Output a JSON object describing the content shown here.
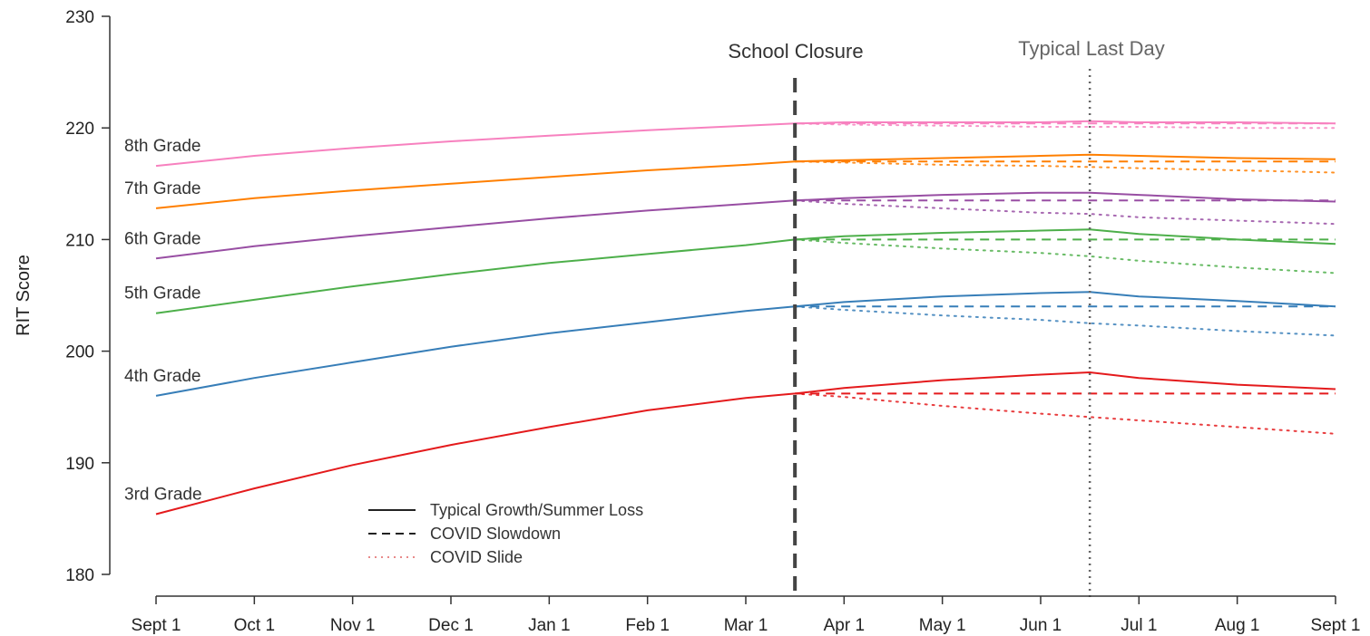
{
  "chart_data": {
    "type": "line",
    "ylabel": "RIT Score",
    "xlabel": "",
    "ylim": [
      180,
      230
    ],
    "yticks": [
      180,
      190,
      200,
      210,
      220,
      230
    ],
    "x_ticks": [
      "Sept 1",
      "Oct 1",
      "Nov 1",
      "Dec 1",
      "Jan 1",
      "Feb 1",
      "Mar 1",
      "Apr 1",
      "May 1",
      "Jun 1",
      "Jul 1",
      "Aug 1",
      "Sept 1"
    ],
    "grid": false,
    "annotations": {
      "closure": {
        "label": "School Closure",
        "x": 6.5,
        "color": "#444444"
      },
      "last_day": {
        "label": "Typical Last Day",
        "x": 9.5,
        "color": "#666666"
      }
    },
    "legend": {
      "position": "bottom-left",
      "items": [
        {
          "label": "Typical Growth/Summer Loss",
          "style": "solid"
        },
        {
          "label": "COVID Slowdown",
          "style": "dashed"
        },
        {
          "label": "COVID Slide",
          "style": "dotted"
        }
      ]
    },
    "series": [
      {
        "label": "3rd Grade",
        "color": "#e41a1c",
        "typical": [
          [
            0,
            185.4
          ],
          [
            1,
            187.7
          ],
          [
            2,
            189.8
          ],
          [
            3,
            191.6
          ],
          [
            4,
            193.2
          ],
          [
            5,
            194.7
          ],
          [
            6,
            195.8
          ],
          [
            6.5,
            196.2
          ],
          [
            7,
            196.7
          ],
          [
            8,
            197.4
          ],
          [
            9,
            197.9
          ],
          [
            9.5,
            198.1
          ],
          [
            10,
            197.6
          ],
          [
            11,
            197.0
          ],
          [
            12,
            196.6
          ]
        ],
        "slowdown": [
          [
            6.5,
            196.2
          ],
          [
            12,
            196.2
          ]
        ],
        "slide": [
          [
            6.5,
            196.2
          ],
          [
            7,
            195.9
          ],
          [
            8,
            195.1
          ],
          [
            9,
            194.4
          ],
          [
            9.5,
            194.1
          ],
          [
            10,
            193.8
          ],
          [
            11,
            193.2
          ],
          [
            12,
            192.6
          ]
        ]
      },
      {
        "label": "4th Grade",
        "color": "#377eb8",
        "typical": [
          [
            0,
            196.0
          ],
          [
            1,
            197.6
          ],
          [
            2,
            199.0
          ],
          [
            3,
            200.4
          ],
          [
            4,
            201.6
          ],
          [
            5,
            202.6
          ],
          [
            6,
            203.6
          ],
          [
            6.5,
            204.0
          ],
          [
            7,
            204.4
          ],
          [
            8,
            204.9
          ],
          [
            9,
            205.2
          ],
          [
            9.5,
            205.3
          ],
          [
            10,
            204.9
          ],
          [
            11,
            204.5
          ],
          [
            12,
            204.0
          ]
        ],
        "slowdown": [
          [
            6.5,
            204.0
          ],
          [
            12,
            204.0
          ]
        ],
        "slide": [
          [
            6.5,
            204.0
          ],
          [
            7,
            203.7
          ],
          [
            8,
            203.2
          ],
          [
            9,
            202.8
          ],
          [
            9.5,
            202.5
          ],
          [
            10,
            202.3
          ],
          [
            11,
            201.8
          ],
          [
            12,
            201.4
          ]
        ]
      },
      {
        "label": "5th Grade",
        "color": "#4daf4a",
        "typical": [
          [
            0,
            203.4
          ],
          [
            1,
            204.6
          ],
          [
            2,
            205.8
          ],
          [
            3,
            206.9
          ],
          [
            4,
            207.9
          ],
          [
            5,
            208.7
          ],
          [
            6,
            209.5
          ],
          [
            6.5,
            210.0
          ],
          [
            7,
            210.3
          ],
          [
            8,
            210.6
          ],
          [
            9,
            210.8
          ],
          [
            9.5,
            210.9
          ],
          [
            10,
            210.5
          ],
          [
            11,
            210.0
          ],
          [
            12,
            209.6
          ]
        ],
        "slowdown": [
          [
            6.5,
            210.0
          ],
          [
            12,
            210.0
          ]
        ],
        "slide": [
          [
            6.5,
            210.0
          ],
          [
            7,
            209.7
          ],
          [
            8,
            209.2
          ],
          [
            9,
            208.8
          ],
          [
            9.5,
            208.5
          ],
          [
            10,
            208.1
          ],
          [
            11,
            207.5
          ],
          [
            12,
            207.0
          ]
        ]
      },
      {
        "label": "6th Grade",
        "color": "#984ea3",
        "typical": [
          [
            0,
            208.3
          ],
          [
            1,
            209.4
          ],
          [
            2,
            210.3
          ],
          [
            3,
            211.1
          ],
          [
            4,
            211.9
          ],
          [
            5,
            212.6
          ],
          [
            6,
            213.2
          ],
          [
            6.5,
            213.5
          ],
          [
            7,
            213.7
          ],
          [
            8,
            214.0
          ],
          [
            9,
            214.2
          ],
          [
            9.5,
            214.2
          ],
          [
            10,
            214.0
          ],
          [
            11,
            213.6
          ],
          [
            12,
            213.4
          ]
        ],
        "slowdown": [
          [
            6.5,
            213.5
          ],
          [
            12,
            213.5
          ]
        ],
        "slide": [
          [
            6.5,
            213.5
          ],
          [
            7,
            213.2
          ],
          [
            8,
            212.8
          ],
          [
            9,
            212.4
          ],
          [
            9.5,
            212.3
          ],
          [
            10,
            212.0
          ],
          [
            11,
            211.7
          ],
          [
            12,
            211.4
          ]
        ]
      },
      {
        "label": "7th Grade",
        "color": "#ff7f00",
        "typical": [
          [
            0,
            212.8
          ],
          [
            1,
            213.7
          ],
          [
            2,
            214.4
          ],
          [
            3,
            215.0
          ],
          [
            4,
            215.6
          ],
          [
            5,
            216.2
          ],
          [
            6,
            216.7
          ],
          [
            6.5,
            217.0
          ],
          [
            7,
            217.1
          ],
          [
            8,
            217.3
          ],
          [
            9,
            217.5
          ],
          [
            9.5,
            217.6
          ],
          [
            10,
            217.5
          ],
          [
            11,
            217.3
          ],
          [
            12,
            217.2
          ]
        ],
        "slowdown": [
          [
            6.5,
            217.0
          ],
          [
            12,
            217.0
          ]
        ],
        "slide": [
          [
            6.5,
            217.0
          ],
          [
            7,
            216.9
          ],
          [
            8,
            216.7
          ],
          [
            9,
            216.6
          ],
          [
            9.5,
            216.5
          ],
          [
            10,
            216.4
          ],
          [
            11,
            216.2
          ],
          [
            12,
            216.0
          ]
        ]
      },
      {
        "label": "8th Grade",
        "color": "#f781bf",
        "typical": [
          [
            0,
            216.6
          ],
          [
            1,
            217.5
          ],
          [
            2,
            218.2
          ],
          [
            3,
            218.8
          ],
          [
            4,
            219.3
          ],
          [
            5,
            219.8
          ],
          [
            6,
            220.2
          ],
          [
            6.5,
            220.4
          ],
          [
            7,
            220.5
          ],
          [
            8,
            220.5
          ],
          [
            9,
            220.5
          ],
          [
            9.5,
            220.6
          ],
          [
            10,
            220.5
          ],
          [
            11,
            220.5
          ],
          [
            12,
            220.4
          ]
        ],
        "slowdown": [
          [
            6.5,
            220.4
          ],
          [
            12,
            220.4
          ]
        ],
        "slide": [
          [
            6.5,
            220.4
          ],
          [
            7,
            220.3
          ],
          [
            8,
            220.2
          ],
          [
            9,
            220.1
          ],
          [
            9.5,
            220.1
          ],
          [
            10,
            220.1
          ],
          [
            11,
            220.0
          ],
          [
            12,
            220.0
          ]
        ]
      }
    ]
  }
}
